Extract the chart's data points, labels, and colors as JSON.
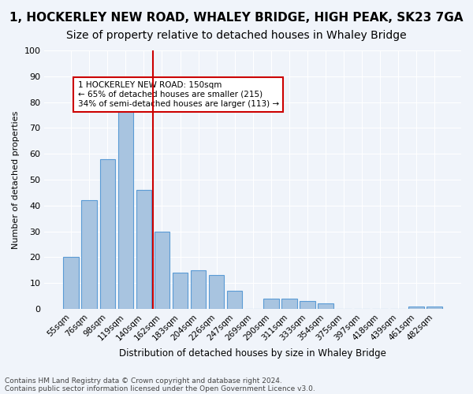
{
  "title": "1, HOCKERLEY NEW ROAD, WHALEY BRIDGE, HIGH PEAK, SK23 7GA",
  "subtitle": "Size of property relative to detached houses in Whaley Bridge",
  "xlabel": "Distribution of detached houses by size in Whaley Bridge",
  "ylabel": "Number of detached properties",
  "footnote1": "Contains HM Land Registry data © Crown copyright and database right 2024.",
  "footnote2": "Contains public sector information licensed under the Open Government Licence v3.0.",
  "categories": [
    "55sqm",
    "76sqm",
    "98sqm",
    "119sqm",
    "140sqm",
    "162sqm",
    "183sqm",
    "204sqm",
    "226sqm",
    "247sqm",
    "269sqm",
    "290sqm",
    "311sqm",
    "333sqm",
    "354sqm",
    "375sqm",
    "397sqm",
    "418sqm",
    "439sqm",
    "461sqm",
    "482sqm"
  ],
  "values": [
    20,
    42,
    58,
    77,
    46,
    30,
    14,
    15,
    13,
    7,
    0,
    4,
    4,
    3,
    2,
    0,
    0,
    0,
    0,
    1,
    1
  ],
  "bar_color": "#a8c4e0",
  "bar_edge_color": "#5b9bd5",
  "bar_alpha": 1.0,
  "vline_x": 4.5,
  "vline_color": "#cc0000",
  "annotation_title": "1 HOCKERLEY NEW ROAD: 150sqm",
  "annotation_line2": "← 65% of detached houses are smaller (215)",
  "annotation_line3": "34% of semi-detached houses are larger (113) →",
  "annotation_box_color": "#cc0000",
  "ylim": [
    0,
    100
  ],
  "yticks": [
    0,
    10,
    20,
    30,
    40,
    50,
    60,
    70,
    80,
    90,
    100
  ],
  "background_color": "#f0f4fa",
  "grid_color": "#ffffff",
  "title_fontsize": 11,
  "subtitle_fontsize": 10
}
